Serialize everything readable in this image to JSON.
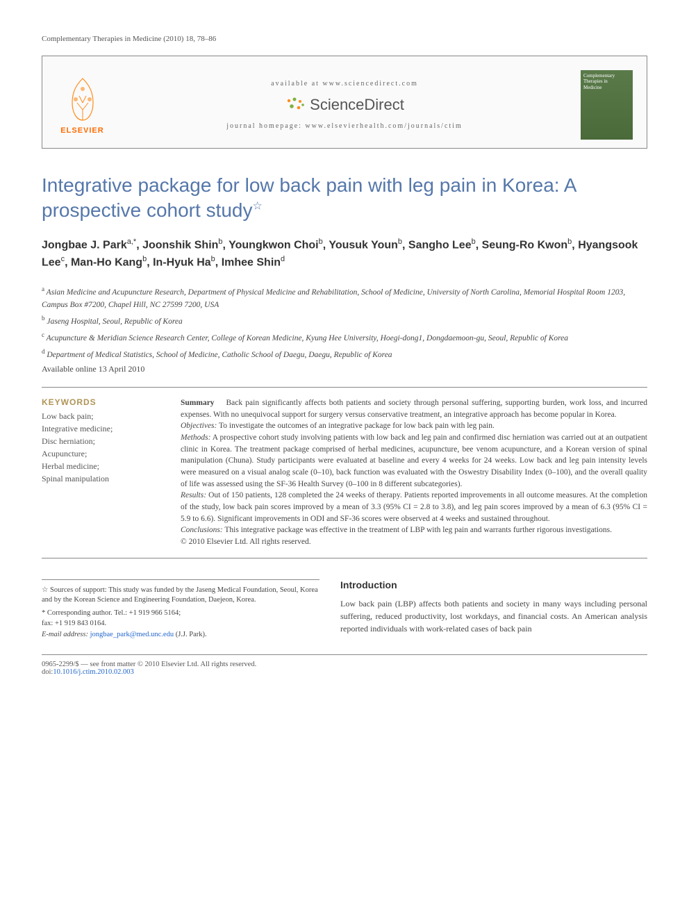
{
  "running_head": "Complementary Therapies in Medicine (2010) 18, 78–86",
  "header": {
    "elsevier_label": "ELSEVIER",
    "available_at": "available at www.sciencedirect.com",
    "sciencedirect": "ScienceDirect",
    "journal_homepage": "journal homepage: www.elsevierhealth.com/journals/ctim",
    "cover_line1": "Complementary",
    "cover_line2": "Therapies in",
    "cover_line3": "Medicine"
  },
  "title": "Integrative package for low back pain with leg pain in Korea: A prospective cohort study",
  "authors_html": "Jongbae J. Park<sup>a,*</sup>, Joonshik Shin<sup>b</sup>, Youngkwon Choi<sup>b</sup>, Yousuk Youn<sup>b</sup>, Sangho Lee<sup>b</sup>, Seung-Ro Kwon<sup>b</sup>, Hyangsook Lee<sup>c</sup>, Man-Ho Kang<sup>b</sup>, In-Hyuk Ha<sup>b</sup>, Imhee Shin<sup>d</sup>",
  "affiliations": [
    "<sup>a</sup> Asian Medicine and Acupuncture Research, Department of Physical Medicine and Rehabilitation, School of Medicine, University of North Carolina, Memorial Hospital Room 1203, Campus Box #7200, Chapel Hill, NC 27599 7200, USA",
    "<sup>b</sup> Jaseng Hospital, Seoul, Republic of Korea",
    "<sup>c</sup> Acupuncture & Meridian Science Research Center, College of Korean Medicine, Kyung Hee University, Hoegi-dong1, Dongdaemoon-gu, Seoul, Republic of Korea",
    "<sup>d</sup> Department of Medical Statistics, School of Medicine, Catholic School of Daegu, Daegu, Republic of Korea"
  ],
  "available_online": "Available online 13 April 2010",
  "keywords_head": "KEYWORDS",
  "keywords": "Low back pain;\nIntegrative medicine;\nDisc herniation;\nAcupuncture;\nHerbal medicine;\nSpinal manipulation",
  "abstract": {
    "summary_label": "Summary",
    "summary": "Back pain significantly affects both patients and society through personal suffering, supporting burden, work loss, and incurred expenses. With no unequivocal support for surgery versus conservative treatment, an integrative approach has become popular in Korea.",
    "objectives_label": "Objectives:",
    "objectives": "To investigate the outcomes of an integrative package for low back pain with leg pain.",
    "methods_label": "Methods:",
    "methods": "A prospective cohort study involving patients with low back and leg pain and confirmed disc herniation was carried out at an outpatient clinic in Korea. The treatment package comprised of herbal medicines, acupuncture, bee venom acupuncture, and a Korean version of spinal manipulation (Chuna). Study participants were evaluated at baseline and every 4 weeks for 24 weeks. Low back and leg pain intensity levels were measured on a visual analog scale (0–10), back function was evaluated with the Oswestry Disability Index (0–100), and the overall quality of life was assessed using the SF-36 Health Survey (0–100 in 8 different subcategories).",
    "results_label": "Results:",
    "results": "Out of 150 patients, 128 completed the 24 weeks of therapy. Patients reported improvements in all outcome measures. At the completion of the study, low back pain scores improved by a mean of 3.3 (95% CI = 2.8 to 3.8), and leg pain scores improved by a mean of 6.3 (95% CI = 5.9 to 6.6). Significant improvements in ODI and SF-36 scores were observed at 4 weeks and sustained throughout.",
    "conclusions_label": "Conclusions:",
    "conclusions": "This integrative package was effective in the treatment of LBP with leg pain and warrants further rigorous investigations.",
    "copyright": "© 2010 Elsevier Ltd. All rights reserved."
  },
  "footnotes": {
    "sources": "☆ Sources of support: This study was funded by the Jaseng Medical Foundation, Seoul, Korea and by the Korean Science and Engineering Foundation, Daejeon, Korea.",
    "corresponding": "* Corresponding author. Tel.: +1 919 966 5164;",
    "fax": "fax: +1 919 843 0164.",
    "email_label": "E-mail address:",
    "email": "jongbae_park@med.unc.edu",
    "email_suffix": "(J.J. Park)."
  },
  "intro": {
    "heading": "Introduction",
    "text": "Low back pain (LBP) affects both patients and society in many ways including personal suffering, reduced productivity, lost workdays, and financial costs. An American analysis reported individuals with work-related cases of back pain"
  },
  "bottom": {
    "front_matter": "0965-2299/$ — see front matter © 2010 Elsevier Ltd. All rights reserved.",
    "doi_label": "doi:",
    "doi": "10.1016/j.ctim.2010.02.003"
  },
  "colors": {
    "title_color": "#5577aa",
    "keywords_head_color": "#af9456",
    "link_color": "#2266cc",
    "elsevier_orange": "#ff6b00"
  }
}
